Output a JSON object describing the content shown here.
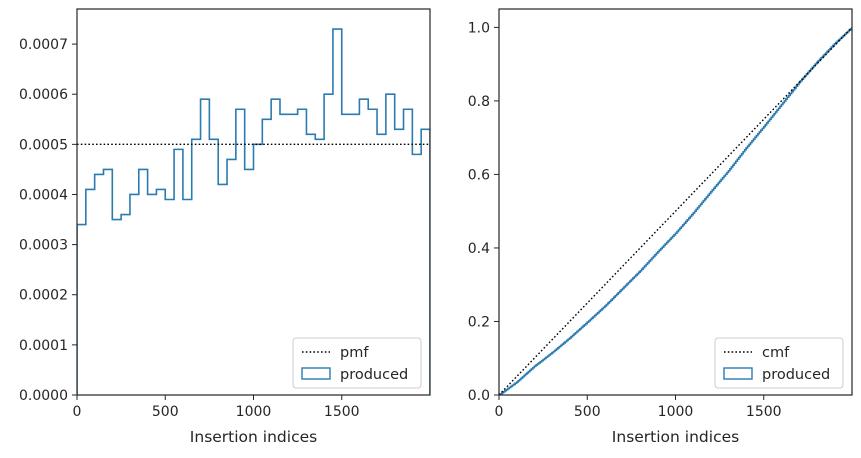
{
  "chart_data": [
    {
      "type": "step-histogram",
      "xlabel": "Insertion indices",
      "ylabel": "",
      "xlim": [
        0,
        2000
      ],
      "ylim": [
        0,
        0.00077
      ],
      "xticks": [
        0,
        500,
        1000,
        1500
      ],
      "xtick_labels": [
        "0",
        "500",
        "1000",
        "1500"
      ],
      "yticks": [
        0,
        0.0001,
        0.0002,
        0.0003,
        0.0004,
        0.0005,
        0.0006,
        0.0007
      ],
      "ytick_labels": [
        "0.0000",
        "0.0001",
        "0.0002",
        "0.0003",
        "0.0004",
        "0.0005",
        "0.0006",
        "0.0007"
      ],
      "bin_width": 50,
      "bin_edges_start": 0,
      "series": [
        {
          "name": "produced",
          "style": "step",
          "color": "#2b7bb0",
          "values": [
            0.00034,
            0.00041,
            0.00044,
            0.00045,
            0.00035,
            0.00036,
            0.0004,
            0.00045,
            0.0004,
            0.00041,
            0.00039,
            0.00049,
            0.00039,
            0.00051,
            0.00059,
            0.00051,
            0.00042,
            0.00047,
            0.00057,
            0.00045,
            0.0005,
            0.00055,
            0.00059,
            0.00056,
            0.00056,
            0.00057,
            0.00052,
            0.00051,
            0.0006,
            0.00073,
            0.00056,
            0.00056,
            0.00059,
            0.00057,
            0.00052,
            0.0006,
            0.00053,
            0.00057,
            0.00048,
            0.00053
          ]
        },
        {
          "name": "pmf",
          "style": "dotted",
          "color": "#000000",
          "x": [
            0,
            2000
          ],
          "y": [
            0.0005,
            0.0005
          ]
        }
      ],
      "legend": {
        "placement": "bottom-right",
        "entries": [
          {
            "label": "pmf",
            "marker": "dotted-line"
          },
          {
            "label": "produced",
            "marker": "box"
          }
        ]
      }
    },
    {
      "type": "line",
      "xlabel": "Insertion indices",
      "ylabel": "",
      "xlim": [
        0,
        2000
      ],
      "ylim": [
        0,
        1.05
      ],
      "xticks": [
        0,
        500,
        1000,
        1500
      ],
      "xtick_labels": [
        "0",
        "500",
        "1000",
        "1500"
      ],
      "yticks": [
        0.0,
        0.2,
        0.4,
        0.6,
        0.8,
        1.0
      ],
      "ytick_labels": [
        "0.0",
        "0.2",
        "0.4",
        "0.6",
        "0.8",
        "1.0"
      ],
      "series": [
        {
          "name": "produced",
          "style": "step",
          "color": "#2b7bb0",
          "x": [
            0,
            100,
            200,
            300,
            400,
            500,
            600,
            700,
            800,
            900,
            1000,
            1100,
            1200,
            1300,
            1400,
            1500,
            1600,
            1700,
            1800,
            1900,
            2000
          ],
          "y": [
            0.0,
            0.035,
            0.078,
            0.115,
            0.155,
            0.198,
            0.242,
            0.29,
            0.338,
            0.39,
            0.44,
            0.495,
            0.553,
            0.61,
            0.672,
            0.73,
            0.79,
            0.85,
            0.905,
            0.955,
            1.0
          ]
        },
        {
          "name": "cmf",
          "style": "dotted",
          "color": "#000000",
          "x": [
            0,
            2000
          ],
          "y": [
            0,
            1.0
          ]
        }
      ],
      "legend": {
        "placement": "bottom-right",
        "entries": [
          {
            "label": "cmf",
            "marker": "dotted-line"
          },
          {
            "label": "produced",
            "marker": "box"
          }
        ]
      }
    }
  ]
}
